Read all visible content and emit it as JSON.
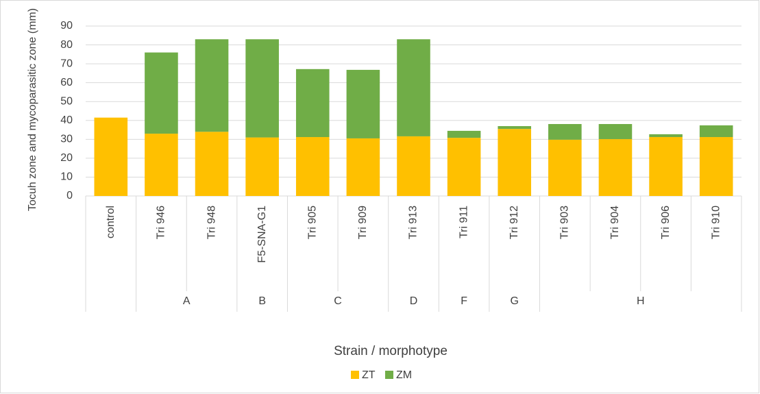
{
  "chart_data": {
    "type": "stacked_bar",
    "y_label": "Tocuh zone and mycoparasitic zone  (mm)",
    "x_label": "Strain / morphotype",
    "categories": [
      "control",
      "Tri 946",
      "Tri 948",
      "F5-SNA-G1",
      "Tri 905",
      "Tri 909",
      "Tri 913",
      "Tri 911",
      "Tri 912",
      "Tri 903",
      "Tri 904",
      "Tri 906",
      "Tri 910"
    ],
    "groups": [
      null,
      "A",
      "A",
      "B",
      "C",
      "C",
      "D",
      "F",
      "G",
      "H",
      "H",
      "H",
      "H"
    ],
    "series": [
      {
        "name": "ZT",
        "color": "#ffc000",
        "values": [
          41.5,
          33,
          34,
          31,
          31.2,
          30.5,
          31.6,
          30.8,
          35.5,
          29.8,
          30.1,
          31.2,
          31.2
        ]
      },
      {
        "name": "ZM",
        "color": "#70ad47",
        "values": [
          0,
          43,
          49,
          52,
          36,
          36.3,
          51.4,
          3.7,
          1.5,
          8.3,
          8,
          1.5,
          6.2
        ]
      }
    ],
    "ylim": [
      0,
      90
    ],
    "yticks": [
      0,
      10,
      20,
      30,
      40,
      50,
      60,
      70,
      80,
      90
    ],
    "grid": true,
    "legend": "bottom"
  }
}
